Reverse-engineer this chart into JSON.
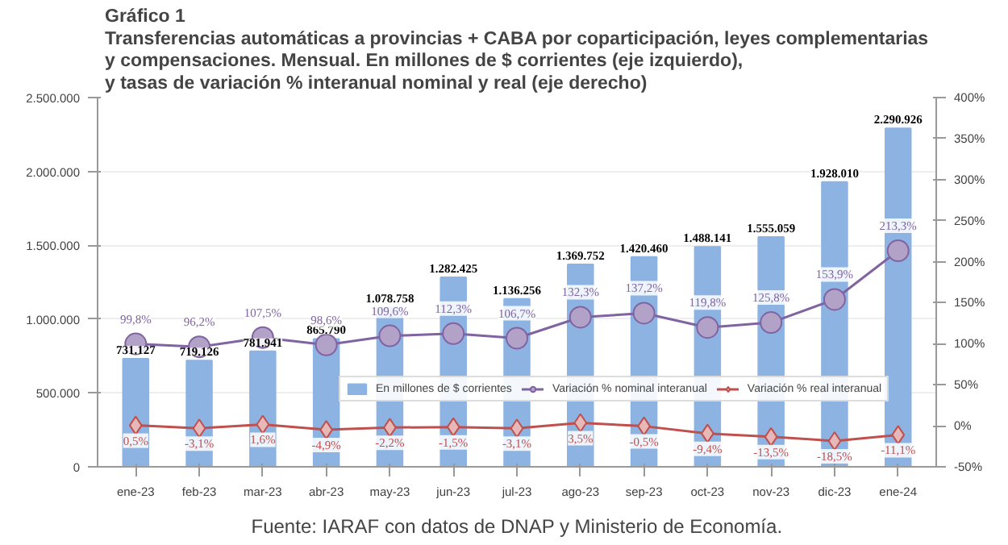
{
  "chart_data": {
    "type": "bar",
    "title": "Gráfico 1\nTransferencias automáticas a provincias + CABA por coparticipación, leyes complementarias\ny compensaciones. Mensual. En millones de $ corrientes (eje izquierdo),\ny tasas de variación % interanual nominal y real (eje derecho)",
    "categories": [
      "ene-23",
      "feb-23",
      "mar-23",
      "abr-23",
      "may-23",
      "jun-23",
      "jul-23",
      "ago-23",
      "sep-23",
      "oct-23",
      "nov-23",
      "dic-23",
      "ene-24"
    ],
    "series": [
      {
        "name": "En millones de $ corrientes",
        "color": "#8db3e2",
        "values": [
          731127,
          719126,
          781941,
          865790,
          1078758,
          1282425,
          1136256,
          1369752,
          1420460,
          1488141,
          1555059,
          1928010,
          2290926
        ],
        "value_labels": [
          "731.127",
          "719.126",
          "781.941",
          "865.790",
          "1.078.758",
          "1.282.425",
          "1.136.256",
          "1.369.752",
          "1.420.460",
          "1.488.141",
          "1.555.059",
          "1.928.010",
          "2.290.926"
        ]
      },
      {
        "name": "Variación % nominal interanual",
        "type": "line",
        "axis": "y2",
        "color": "#8064a2",
        "marker": "circle",
        "values": [
          99.8,
          96.2,
          107.5,
          98.6,
          109.6,
          112.3,
          106.7,
          132.3,
          137.2,
          119.8,
          125.8,
          153.9,
          213.3
        ],
        "value_labels": [
          "99,8%",
          "96,2%",
          "107,5%",
          "98,6%",
          "109,6%",
          "112,3%",
          "106,7%",
          "132,3%",
          "137,2%",
          "119,8%",
          "125,8%",
          "153,9%",
          "213,3%"
        ]
      },
      {
        "name": "Variación % real interanual",
        "type": "line",
        "axis": "y2",
        "color": "#c0504d",
        "marker": "diamond",
        "values": [
          0.5,
          -3.1,
          1.6,
          -4.9,
          -2.2,
          -1.5,
          -3.1,
          3.5,
          -0.5,
          -9.4,
          -13.5,
          -18.5,
          -11.1
        ],
        "value_labels": [
          "0,5%",
          "-3,1%",
          "1,6%",
          "-4,9%",
          "-2,2%",
          "-1,5%",
          "-3,1%",
          "3,5%",
          "-0,5%",
          "-9,4%",
          "-13,5%",
          "-18,5%",
          "-11,1%"
        ]
      }
    ],
    "ylim": [
      0,
      2500000
    ],
    "yticks": [
      {
        "value": 0,
        "label": "0"
      },
      {
        "value": 500000,
        "label": "500.000"
      },
      {
        "value": 1000000,
        "label": "1.000.000"
      },
      {
        "value": 1500000,
        "label": "1.500.000"
      },
      {
        "value": 2000000,
        "label": "2.000.000"
      },
      {
        "value": 2500000,
        "label": "2.500.000"
      }
    ],
    "y2lim": [
      -50,
      400
    ],
    "y2ticks": [
      {
        "value": -50,
        "label": "-50%"
      },
      {
        "value": 0,
        "label": "0%"
      },
      {
        "value": 50,
        "label": "50%"
      },
      {
        "value": 100,
        "label": "100%"
      },
      {
        "value": 150,
        "label": "150%"
      },
      {
        "value": 200,
        "label": "200%"
      },
      {
        "value": 250,
        "label": "250%"
      },
      {
        "value": 300,
        "label": "300%"
      },
      {
        "value": 350,
        "label": "350%"
      },
      {
        "value": 400,
        "label": "400%"
      }
    ],
    "grid": "y",
    "legend": "bottom",
    "annotations": [
      "Fuente: IARAF con datos de DNAP y Ministerio de Economía."
    ]
  }
}
